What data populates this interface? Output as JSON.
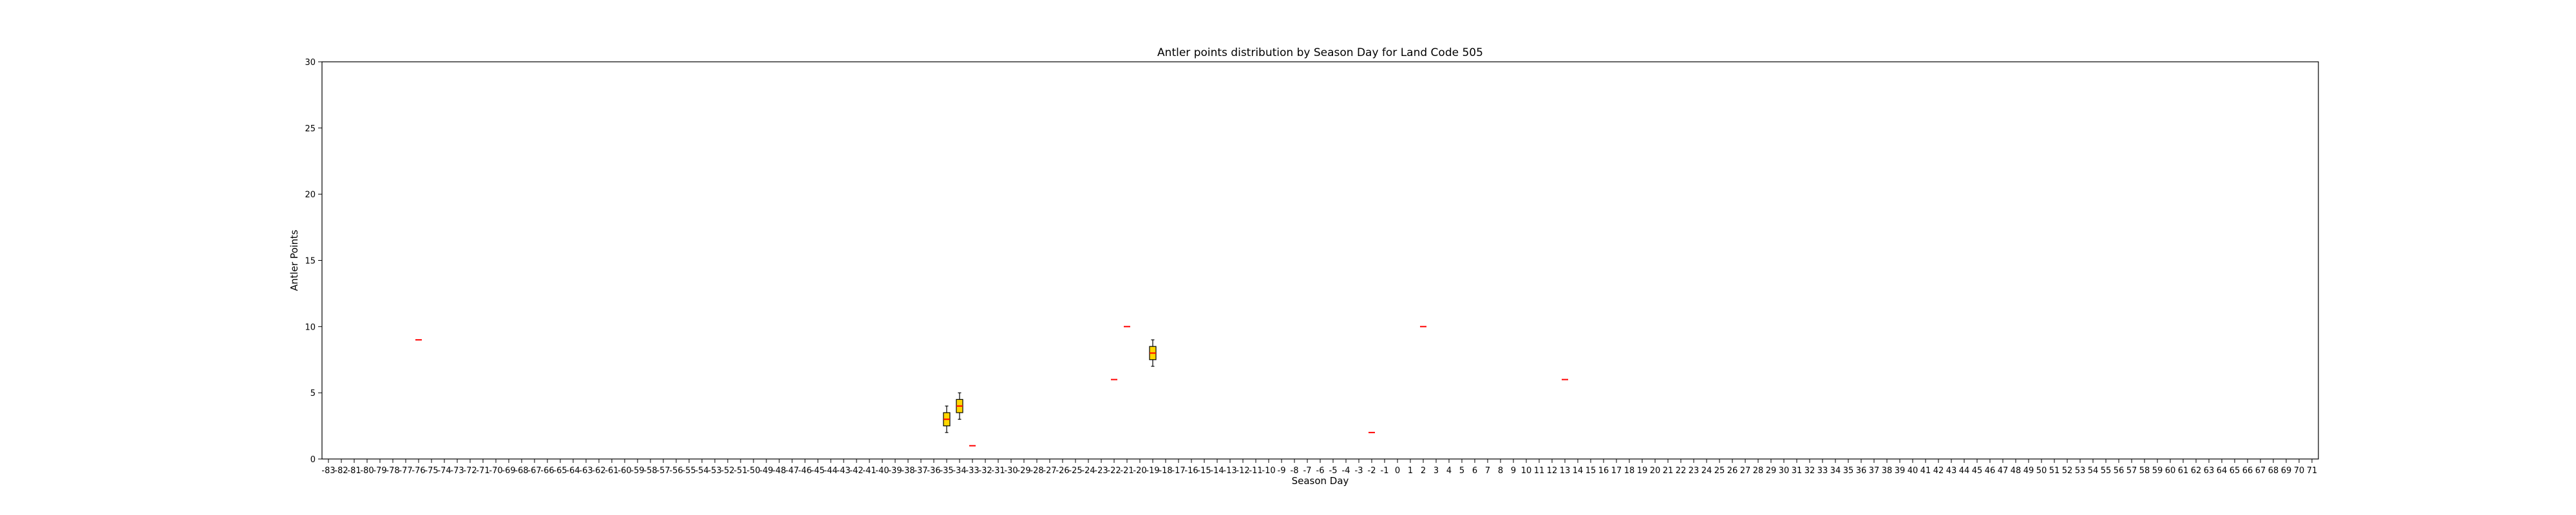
{
  "chart_data": {
    "type": "boxplot",
    "title": "Antler points distribution by Season Day for Land Code 505",
    "xlabel": "Season Day",
    "ylabel": "Antler Points",
    "ylim": [
      0,
      30
    ],
    "yticks": [
      0,
      5,
      10,
      15,
      20,
      25,
      30
    ],
    "x_categories_range": [
      -83,
      71
    ],
    "grid": false,
    "box_fill_color": "#FFD700",
    "median_color": "#FF0000",
    "boxes": [
      {
        "day": -76,
        "q1": 9,
        "median": 9,
        "q3": 9,
        "whisker_low": 9,
        "whisker_high": 9
      },
      {
        "day": -35,
        "q1": 2.5,
        "median": 3,
        "q3": 3.5,
        "whisker_low": 2,
        "whisker_high": 4
      },
      {
        "day": -34,
        "q1": 3.5,
        "median": 4,
        "q3": 4.5,
        "whisker_low": 3,
        "whisker_high": 5
      },
      {
        "day": -33,
        "q1": 1,
        "median": 1,
        "q3": 1,
        "whisker_low": 1,
        "whisker_high": 1
      },
      {
        "day": -22,
        "q1": 6,
        "median": 6,
        "q3": 6,
        "whisker_low": 6,
        "whisker_high": 6
      },
      {
        "day": -21,
        "q1": 10,
        "median": 10,
        "q3": 10,
        "whisker_low": 10,
        "whisker_high": 10
      },
      {
        "day": -19,
        "q1": 7.5,
        "median": 8,
        "q3": 8.5,
        "whisker_low": 7,
        "whisker_high": 9
      },
      {
        "day": -2,
        "q1": 2,
        "median": 2,
        "q3": 2,
        "whisker_low": 2,
        "whisker_high": 2
      },
      {
        "day": 2,
        "q1": 10,
        "median": 10,
        "q3": 10,
        "whisker_low": 10,
        "whisker_high": 10
      },
      {
        "day": 13,
        "q1": 6,
        "median": 6,
        "q3": 6,
        "whisker_low": 6,
        "whisker_high": 6
      }
    ]
  }
}
